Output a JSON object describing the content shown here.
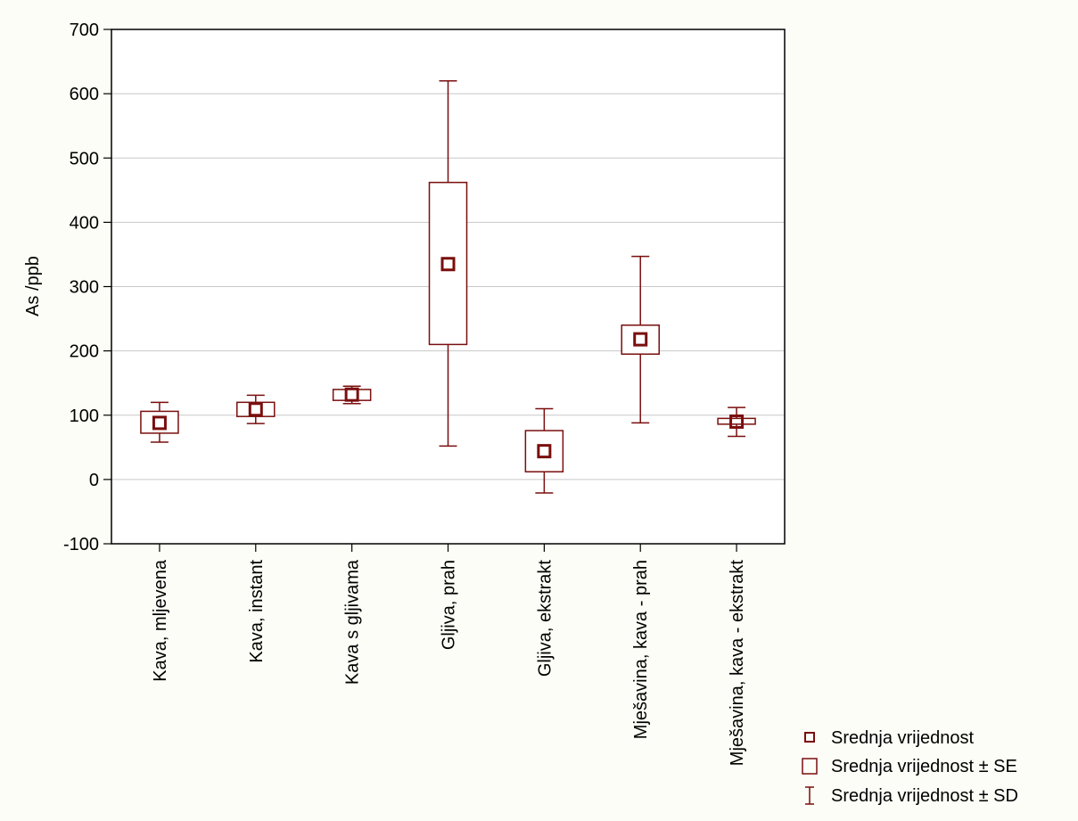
{
  "chart_data": {
    "type": "box",
    "ylabel": "As /ppb",
    "ylim": [
      -100,
      700
    ],
    "yticks": [
      -100,
      0,
      100,
      200,
      300,
      400,
      500,
      600,
      700
    ],
    "grid": true,
    "categories": [
      "Kava, mljevena",
      "Kava, instant",
      "Kava s gljivama",
      "Gljiva, prah",
      "Gljiva, ekstrakt",
      "Mješavina, kava - prah",
      "Mješavina, kava - ekstrakt"
    ],
    "mean": [
      88,
      109,
      132,
      335,
      44,
      218,
      90
    ],
    "se_low": [
      72,
      98,
      123,
      210,
      12,
      195,
      86
    ],
    "se_high": [
      106,
      120,
      140,
      462,
      76,
      240,
      95
    ],
    "sd_low": [
      58,
      87,
      118,
      52,
      -21,
      88,
      67
    ],
    "sd_high": [
      120,
      131,
      145,
      620,
      110,
      347,
      112
    ],
    "legend_position": "bottom-right",
    "legend": [
      "Srednja vrijednost",
      "Srednja vrijednost ± SE",
      "Srednja vrijednost ± SD"
    ],
    "color": "#7a0e0e"
  }
}
